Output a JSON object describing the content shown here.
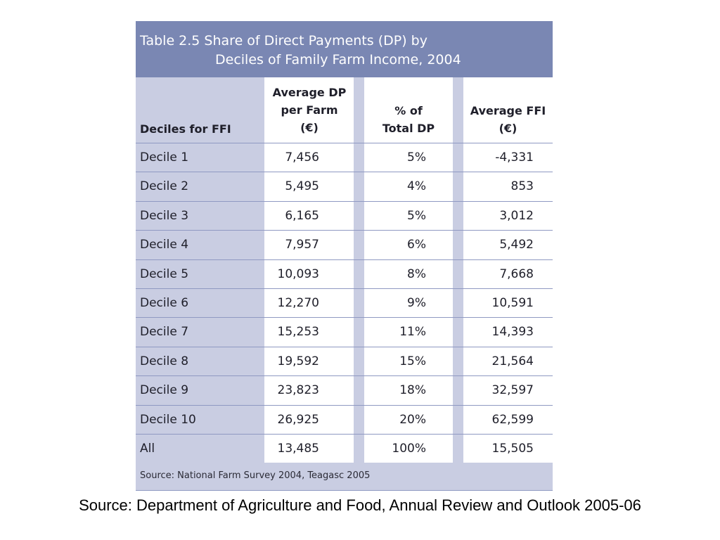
{
  "table": {
    "title_line1": "Table 2.5  Share of Direct Payments (DP) by",
    "title_line2": "Deciles of Family Farm Income, 2004",
    "headers": {
      "col0": "Deciles for FFI",
      "col1": [
        "Average DP",
        "per Farm",
        "(€)"
      ],
      "col2": [
        "% of",
        "Total DP"
      ],
      "col3": [
        "Average FFI",
        "(€)"
      ]
    },
    "rows": [
      {
        "decile": "Decile 1",
        "avg_dp": "7,456",
        "pct_dp": "5%",
        "avg_ffi": "-4,331"
      },
      {
        "decile": "Decile 2",
        "avg_dp": "5,495",
        "pct_dp": "4%",
        "avg_ffi": "853"
      },
      {
        "decile": "Decile 3",
        "avg_dp": "6,165",
        "pct_dp": "5%",
        "avg_ffi": "3,012"
      },
      {
        "decile": "Decile 4",
        "avg_dp": "7,957",
        "pct_dp": "6%",
        "avg_ffi": "5,492"
      },
      {
        "decile": "Decile 5",
        "avg_dp": "10,093",
        "pct_dp": "8%",
        "avg_ffi": "7,668"
      },
      {
        "decile": "Decile 6",
        "avg_dp": "12,270",
        "pct_dp": "9%",
        "avg_ffi": "10,591"
      },
      {
        "decile": "Decile 7",
        "avg_dp": "15,253",
        "pct_dp": "11%",
        "avg_ffi": "14,393"
      },
      {
        "decile": "Decile 8",
        "avg_dp": "19,592",
        "pct_dp": "15%",
        "avg_ffi": "21,564"
      },
      {
        "decile": "Decile 9",
        "avg_dp": "23,823",
        "pct_dp": "18%",
        "avg_ffi": "32,597"
      },
      {
        "decile": "Decile 10",
        "avg_dp": "26,925",
        "pct_dp": "20%",
        "avg_ffi": "62,599"
      },
      {
        "decile": "All",
        "avg_dp": "13,485",
        "pct_dp": "100%",
        "avg_ffi": "15,505"
      }
    ],
    "table_source": "Source: National Farm Survey 2004, Teagasc 2005"
  },
  "slide_source": "Source: Department of Agriculture and Food, Annual Review and Outlook 2005-06",
  "colors": {
    "title_band": "#7a87b3",
    "label_column": "#c9cde2",
    "rule": "#8f99c2"
  }
}
